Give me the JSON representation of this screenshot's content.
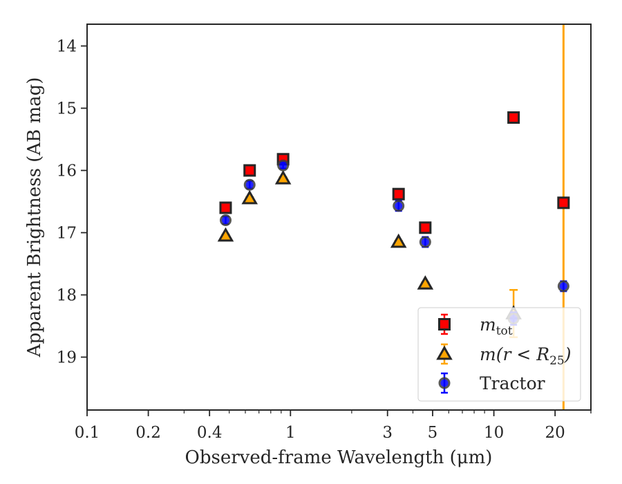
{
  "chart_data": {
    "type": "scatter",
    "title": "",
    "xlabel": "Observed-frame Wavelength (μm)",
    "ylabel": "Apparent Brightness (AB mag)",
    "xscale": "log",
    "xlim": [
      0.1,
      30
    ],
    "ylim": [
      19.85,
      13.65
    ],
    "y_inverted": true,
    "grid": false,
    "legend_position": "lower-right",
    "x_ticks": [
      0.1,
      0.2,
      0.4,
      1,
      3,
      5,
      10,
      20
    ],
    "x_tick_labels": [
      "0.1",
      "0.2",
      "0.4",
      "1",
      "3",
      "5",
      "10",
      "20"
    ],
    "y_ticks": [
      14,
      15,
      16,
      17,
      18,
      19
    ],
    "y_tick_labels": [
      "14",
      "15",
      "16",
      "17",
      "18",
      "19"
    ],
    "series": [
      {
        "key": "mtot",
        "name": "m_tot",
        "legend_main": "m",
        "legend_sub": "tot",
        "marker": "square",
        "color": "#ff0000",
        "edge_color": "#262626",
        "errbar_color": "#ff0000",
        "x": [
          0.48,
          0.63,
          0.92,
          3.4,
          4.6,
          12.5,
          22.0
        ],
        "y": [
          16.6,
          16.0,
          15.82,
          16.38,
          16.92,
          15.15,
          16.52
        ],
        "yerr": [
          0.05,
          0.05,
          0.05,
          0.05,
          0.05,
          0.06,
          0.05
        ]
      },
      {
        "key": "mr25",
        "name": "m(r < R25)",
        "legend_main": "m(r < R",
        "legend_sub": "25",
        "legend_end": ")",
        "marker": "triangle",
        "color": "#ffa500",
        "edge_color": "#262626",
        "errbar_color": "#ffa500",
        "x": [
          0.48,
          0.63,
          0.92,
          3.4,
          4.6,
          12.5,
          22.0
        ],
        "y": [
          17.05,
          16.45,
          16.13,
          17.15,
          17.82,
          18.3,
          null
        ],
        "yerr": [
          0.02,
          0.02,
          0.02,
          0.02,
          0.02,
          0.38,
          null
        ],
        "vertical_line_x": 22.0
      },
      {
        "key": "tractor",
        "name": "Tractor",
        "marker": "circle",
        "color": "#0000ff",
        "edge_color": "#3c3c3c",
        "errbar_color": "#0000ff",
        "x": [
          0.48,
          0.63,
          0.92,
          3.4,
          4.6,
          12.5,
          22.0
        ],
        "y": [
          16.8,
          16.23,
          15.92,
          16.57,
          17.15,
          18.38,
          17.86
        ],
        "yerr": [
          0.06,
          0.06,
          0.05,
          0.08,
          0.08,
          0.1,
          0.08
        ]
      }
    ]
  }
}
